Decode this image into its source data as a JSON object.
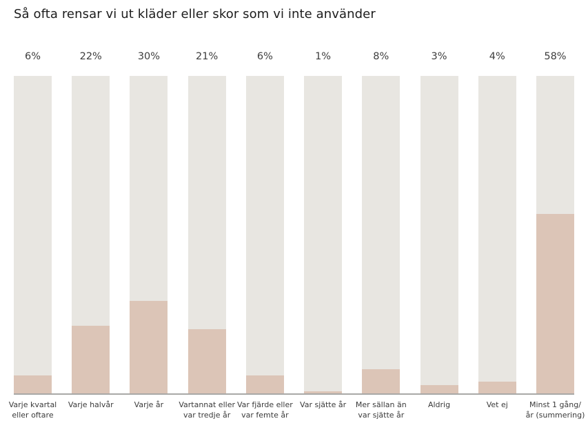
{
  "title": "Så ofta rensar vi ut kläder eller skor som vi inte använder",
  "chart_data": {
    "type": "bar",
    "title": "Så ofta rensar vi ut kläder eller skor som vi inte använder",
    "categories": [
      "Varje kvartal eller oftare",
      "Varje halvår",
      "Varje år",
      "Vartannat eller var tredje år",
      "Var fjärde eller var femte år",
      "Var sjätte år",
      "Mer sällan än var sjätte år",
      "Aldrig",
      "Vet ej",
      "Minst 1 gång/år (summering)"
    ],
    "values": [
      6,
      22,
      30,
      21,
      6,
      1,
      8,
      3,
      4,
      58
    ],
    "value_labels": [
      "6%",
      "22%",
      "30%",
      "21%",
      "6%",
      "1%",
      "8%",
      "3%",
      "4%",
      "58%"
    ],
    "xlabel": "",
    "ylabel": "",
    "ylim": [
      0,
      100
    ],
    "grid": false,
    "legend": false,
    "value_labels_position": "above-bars",
    "background_bars_full_height": true,
    "colors": {
      "bar_background": "#e8e6e1",
      "bar_fill": "#dcc5b7",
      "baseline": "#a8a8a6",
      "title_text": "#1c1c1c",
      "label_text": "#3a3a3a"
    }
  }
}
